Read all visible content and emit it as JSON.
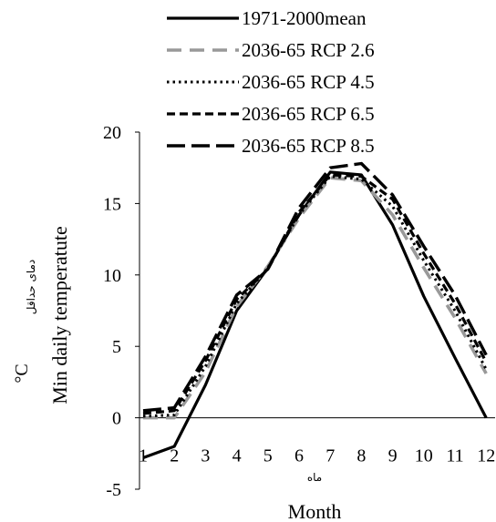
{
  "chart_data": {
    "type": "line",
    "categories": [
      "1",
      "2",
      "3",
      "4",
      "5",
      "6",
      "7",
      "8",
      "9",
      "10",
      "11",
      "12"
    ],
    "x": [
      1,
      2,
      3,
      4,
      5,
      6,
      7,
      8,
      9,
      10,
      11,
      12
    ],
    "xlabel": "Month",
    "xlabel_fa": "ماه",
    "ylabel": "Min daily temperatute",
    "ylabel_fa": "دمای حداقل",
    "yunit": "°C",
    "ylim": [
      -5,
      20
    ],
    "yticks": [
      -5,
      0,
      5,
      10,
      15,
      20
    ],
    "legend_position": "top",
    "series": [
      {
        "name": "1971-2000mean",
        "values": [
          -2.8,
          -2.0,
          2.3,
          7.5,
          10.5,
          14.2,
          17.2,
          17.0,
          13.5,
          8.5,
          4.2,
          0.0
        ],
        "color": "#000000",
        "dash": "solid",
        "width": 3.2
      },
      {
        "name": "2036-65 RCP 2.6",
        "values": [
          0.0,
          0.0,
          3.2,
          7.8,
          10.6,
          14.0,
          16.8,
          16.6,
          14.2,
          10.5,
          7.0,
          3.1
        ],
        "color": "#999999",
        "dash": "long",
        "width": 3.6
      },
      {
        "name": "2036-65 RCP 4.5",
        "values": [
          0.1,
          0.2,
          3.6,
          8.0,
          10.5,
          14.2,
          16.9,
          16.7,
          14.8,
          11.0,
          7.5,
          3.4
        ],
        "color": "#000000",
        "dash": "dot",
        "width": 3.0
      },
      {
        "name": "2036-65 RCP 6.5",
        "values": [
          0.3,
          0.5,
          4.0,
          8.3,
          10.4,
          14.4,
          17.0,
          16.9,
          15.3,
          11.5,
          8.0,
          3.9
        ],
        "color": "#000000",
        "dash": "dash",
        "width": 3.2
      },
      {
        "name": "2036-65 RCP 8.5",
        "values": [
          0.5,
          0.7,
          4.3,
          8.6,
          10.4,
          14.7,
          17.5,
          17.8,
          15.6,
          12.0,
          8.6,
          4.4
        ],
        "color": "#000000",
        "dash": "longdash",
        "width": 3.4
      }
    ]
  }
}
